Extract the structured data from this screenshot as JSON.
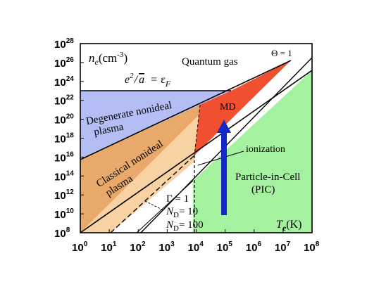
{
  "axes": {
    "x_label_base": "T",
    "x_label_sub": "e",
    "x_label_unit": "(K)",
    "y_label_base": "n",
    "y_label_sub": "e",
    "y_label_unit_open": "(cm",
    "y_label_unit_exp": "-3",
    "y_label_unit_close": ")",
    "x_ticks": [
      {
        "base": "10",
        "exp": "0"
      },
      {
        "base": "10",
        "exp": "1"
      },
      {
        "base": "10",
        "exp": "2"
      },
      {
        "base": "10",
        "exp": "3"
      },
      {
        "base": "10",
        "exp": "4"
      },
      {
        "base": "10",
        "exp": "5"
      },
      {
        "base": "10",
        "exp": "6"
      },
      {
        "base": "10",
        "exp": "7"
      },
      {
        "base": "10",
        "exp": "8"
      }
    ],
    "y_ticks": [
      {
        "base": "10",
        "exp": "8"
      },
      {
        "base": "10",
        "exp": "10"
      },
      {
        "base": "10",
        "exp": "12"
      },
      {
        "base": "10",
        "exp": "14"
      },
      {
        "base": "10",
        "exp": "16"
      },
      {
        "base": "10",
        "exp": "18"
      },
      {
        "base": "10",
        "exp": "20"
      },
      {
        "base": "10",
        "exp": "22"
      },
      {
        "base": "10",
        "exp": "24"
      },
      {
        "base": "10",
        "exp": "26"
      },
      {
        "base": "10",
        "exp": "28"
      }
    ]
  },
  "regions": {
    "quantum_gas": "Quantum gas",
    "degenerate_1": "Degenerate nonideal",
    "degenerate_2": "plasma",
    "classical_1": "Classical nonideal",
    "classical_2": "plasma",
    "md": "MD",
    "pic_1": "Particle-in-Cell",
    "pic_2": "(PIC)"
  },
  "annotations": {
    "theta": "Θ = 1",
    "fermi_lhs_num": "e",
    "fermi_lhs_exp": "2",
    "fermi_lhs_div": "/",
    "fermi_lhs_a": "a",
    "fermi_eq": "=",
    "fermi_eps": "ε",
    "fermi_sub": "F",
    "ionization": "ionization",
    "gamma": "Γ = 1",
    "nd10_base": "N",
    "nd10_sub": "D",
    "nd10_val": "= 10",
    "nd100_base": "N",
    "nd100_sub": "D",
    "nd100_val": "= 100"
  },
  "colors": {
    "degenerate": "#b4bef5",
    "classical_dark": "#e8a96a",
    "classical_light": "#f8d2a3",
    "md": "#f05030",
    "pic": "#a4f2a0",
    "arrow": "#1428c8"
  }
}
